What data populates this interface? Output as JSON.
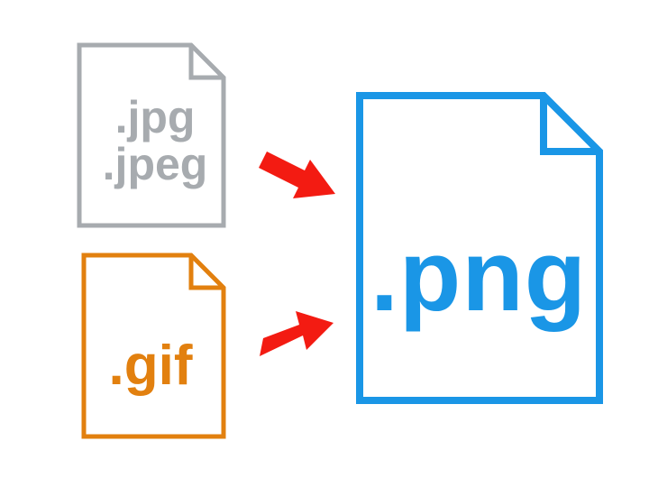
{
  "sources": {
    "jpg": {
      "line1": ".jpg",
      "line2": ".jpeg",
      "color": "#a7abaf"
    },
    "gif": {
      "label": ".gif",
      "color": "#e2800f"
    }
  },
  "target": {
    "label": ".png",
    "color": "#1a96e6"
  },
  "arrows": {
    "color": "#f31b12",
    "count": 2
  }
}
